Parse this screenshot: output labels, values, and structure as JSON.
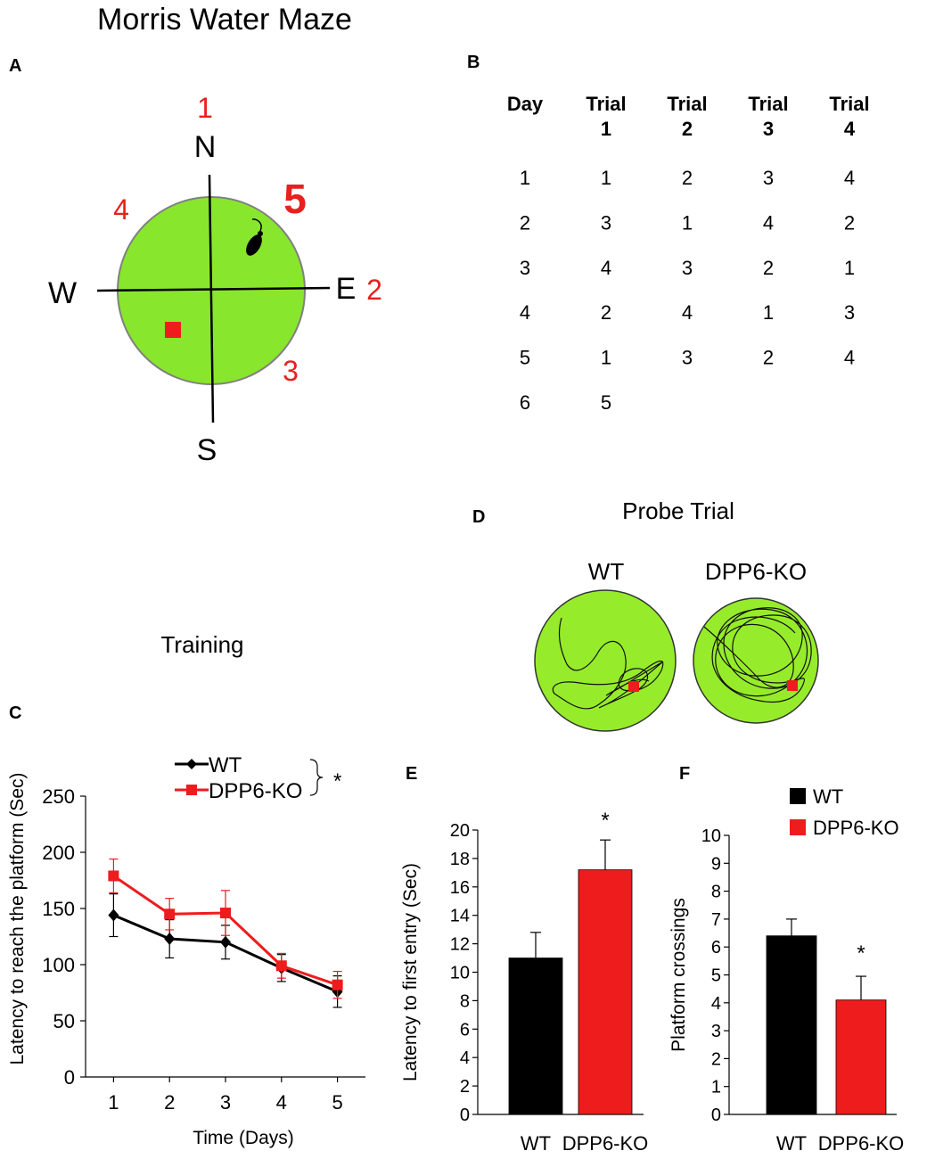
{
  "colors": {
    "pool_green": "#88e62c",
    "probe_green": "#96ec2a",
    "platform_red": "#ee1c1c",
    "wt_black": "#000000",
    "ko_red": "#ee1c1c",
    "start_red": "#e8201e"
  },
  "panelA": {
    "title": "Morris Water Maze",
    "letter": "A",
    "directions": {
      "north": "N",
      "south": "S",
      "east": "E",
      "west": "W"
    },
    "start_positions": [
      "1",
      "2",
      "3",
      "4",
      "5"
    ]
  },
  "panelB": {
    "letter": "B",
    "headers": [
      [
        "Day",
        ""
      ],
      [
        "Trial",
        "1"
      ],
      [
        "Trial",
        "2"
      ],
      [
        "Trial",
        "3"
      ],
      [
        "Trial",
        "4"
      ]
    ],
    "rows": [
      [
        "1",
        "1",
        "2",
        "3",
        "4"
      ],
      [
        "2",
        "3",
        "1",
        "4",
        "2"
      ],
      [
        "3",
        "4",
        "3",
        "2",
        "1"
      ],
      [
        "4",
        "2",
        "4",
        "1",
        "3"
      ],
      [
        "5",
        "1",
        "3",
        "2",
        "4"
      ],
      [
        "6",
        "5",
        "",
        "",
        ""
      ]
    ]
  },
  "panelD": {
    "letter": "D",
    "title": "Probe Trial",
    "labels": [
      "WT",
      "DPP6-KO"
    ]
  },
  "chart_data": [
    {
      "id": "C",
      "type": "line",
      "panel_letter": "C",
      "title": "Training",
      "xlabel": "Time (Days)",
      "ylabel": "Latency to reach the platform (Sec)",
      "x": [
        1,
        2,
        3,
        4,
        5
      ],
      "xlim": [
        0.5,
        5.5
      ],
      "ylim": [
        0,
        250
      ],
      "yticks": [
        0,
        50,
        100,
        150,
        200,
        250
      ],
      "series": [
        {
          "name": "WT",
          "color": "#000000",
          "marker": "diamond",
          "values": [
            144,
            123,
            120,
            97,
            76
          ],
          "errors": [
            19,
            17,
            15,
            12,
            14
          ]
        },
        {
          "name": "DPP6-KO",
          "color": "#ee1c1c",
          "marker": "square",
          "values": [
            179,
            145,
            146,
            99,
            82
          ],
          "errors": [
            15,
            14,
            20,
            11,
            12
          ]
        }
      ],
      "significance": "*"
    },
    {
      "id": "E",
      "type": "bar",
      "panel_letter": "E",
      "ylabel": "Latency to first entry (Sec)",
      "categories": [
        "WT",
        "DPP6-KO"
      ],
      "values": [
        11.0,
        17.2
      ],
      "errors": [
        1.8,
        2.1
      ],
      "colors": [
        "#000000",
        "#ee1c1c"
      ],
      "ylim": [
        0,
        20
      ],
      "yticks": [
        0,
        2,
        4,
        6,
        8,
        10,
        12,
        14,
        16,
        18,
        20
      ],
      "significance": "*"
    },
    {
      "id": "F",
      "type": "bar",
      "panel_letter": "F",
      "ylabel": "Platform crossings",
      "categories": [
        "WT",
        "DPP6-KO"
      ],
      "values": [
        6.4,
        4.1
      ],
      "errors": [
        0.6,
        0.85
      ],
      "colors": [
        "#000000",
        "#ee1c1c"
      ],
      "ylim": [
        0,
        10
      ],
      "yticks": [
        0,
        1,
        2,
        3,
        4,
        5,
        6,
        7,
        8,
        9,
        10
      ],
      "legend": [
        "WT",
        "DPP6-KO"
      ],
      "significance": "*"
    }
  ]
}
